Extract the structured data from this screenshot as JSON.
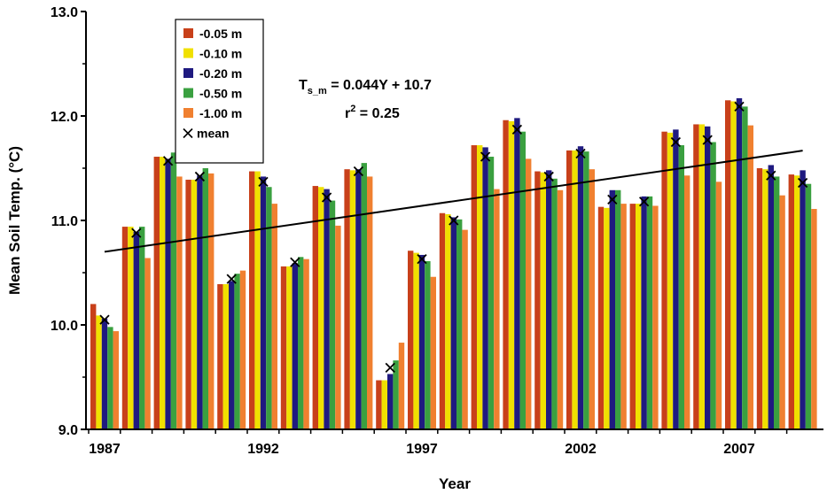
{
  "chart_data": {
    "type": "bar",
    "title": "",
    "xlabel": "Year",
    "ylabel": "Mean Soil Temp. (°C)",
    "ylim": [
      9.0,
      13.0
    ],
    "yticks": [
      "9.0",
      "10.0",
      "11.0",
      "12.0",
      "13.0"
    ],
    "xtick_labels": [
      "1987",
      "1992",
      "1997",
      "2002",
      "2007"
    ],
    "grid": false,
    "legend_position": "top-left",
    "categories": [
      "1987",
      "1988",
      "1989",
      "1990",
      "1991",
      "1992",
      "1993",
      "1994",
      "1995",
      "1996",
      "1997",
      "1998",
      "1999",
      "2000",
      "2001",
      "2002",
      "2003",
      "2004",
      "2005",
      "2006",
      "2007",
      "2008",
      "2009"
    ],
    "series": [
      {
        "name": "-0.05 m",
        "color": "#c8401a",
        "values": [
          10.2,
          10.94,
          11.61,
          11.39,
          10.39,
          11.47,
          10.56,
          11.33,
          11.49,
          9.47,
          10.71,
          11.07,
          11.72,
          11.96,
          11.47,
          11.67,
          11.13,
          11.16,
          11.85,
          11.92,
          12.15,
          11.5,
          11.44
        ]
      },
      {
        "name": "-0.10 m",
        "color": "#f0e000",
        "values": [
          10.09,
          10.94,
          11.61,
          11.39,
          10.39,
          11.47,
          10.56,
          11.32,
          11.48,
          9.47,
          10.69,
          11.06,
          11.72,
          11.95,
          11.46,
          11.67,
          11.12,
          11.16,
          11.84,
          11.92,
          12.14,
          11.49,
          11.43
        ]
      },
      {
        "name": "-0.20 m",
        "color": "#1f1a80",
        "values": [
          10.06,
          10.89,
          11.59,
          11.43,
          10.42,
          11.42,
          10.59,
          11.3,
          11.49,
          9.53,
          10.67,
          11.03,
          11.7,
          11.98,
          11.48,
          11.71,
          11.29,
          11.23,
          11.87,
          11.9,
          12.17,
          11.53,
          11.48
        ]
      },
      {
        "name": "-0.50 m",
        "color": "#3aa040",
        "values": [
          9.98,
          10.94,
          11.65,
          11.5,
          10.49,
          11.32,
          10.65,
          11.19,
          11.55,
          9.66,
          10.61,
          11.01,
          11.61,
          11.85,
          11.4,
          11.66,
          11.29,
          11.23,
          11.72,
          11.75,
          12.09,
          11.42,
          11.35
        ]
      },
      {
        "name": "-1.00 m",
        "color": "#f08030",
        "values": [
          9.94,
          10.64,
          11.42,
          11.45,
          10.52,
          11.16,
          10.63,
          10.95,
          11.42,
          9.83,
          10.46,
          10.91,
          11.3,
          11.59,
          11.29,
          11.49,
          11.16,
          11.14,
          11.43,
          11.37,
          11.91,
          11.24,
          11.11
        ]
      }
    ],
    "mean": {
      "name": "mean",
      "marker": "x",
      "values": [
        10.05,
        10.88,
        11.57,
        11.42,
        10.44,
        11.37,
        10.6,
        11.22,
        11.47,
        9.59,
        10.63,
        11.0,
        11.61,
        11.87,
        11.42,
        11.64,
        11.2,
        11.18,
        11.75,
        11.77,
        12.09,
        11.43,
        11.36
      ]
    },
    "trendline": {
      "slope": 0.044,
      "intercept": 10.7,
      "x_start": "1987",
      "x_end": "2009"
    },
    "equation": {
      "lhs": "T",
      "lhs_sub": "s_m",
      "rhs": " = 0.044Y + 10.7",
      "r2_prefix": "r",
      "r2_sup": "2",
      "r2_rhs": " = 0.25"
    }
  }
}
